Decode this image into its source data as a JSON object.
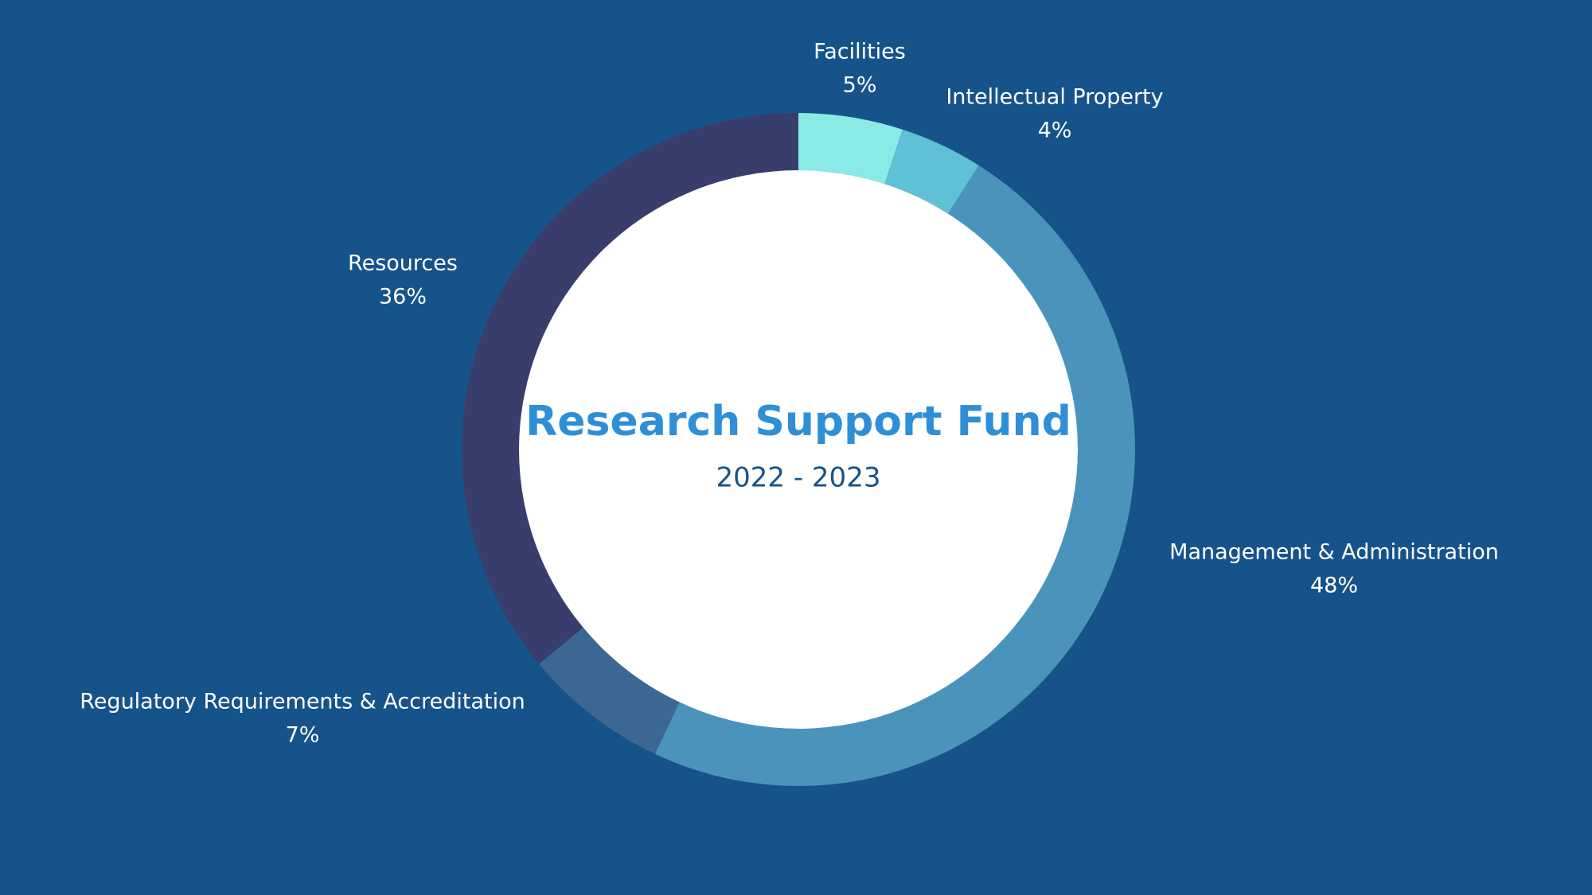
{
  "chart_data": {
    "type": "pie",
    "title": "Research Support Fund",
    "subtitle": "2022 - 2023",
    "categories": [
      "Facilities",
      "Intellectual Property",
      "Management & Administration",
      "Regulatory Requirements & Accreditation",
      "Resources"
    ],
    "values": [
      5,
      4,
      48,
      7,
      36
    ],
    "value_labels": [
      "5%",
      "4%",
      "48%",
      "7%",
      "36%"
    ],
    "colors": [
      "#8aeae6",
      "#5fc0d6",
      "#4a94bb",
      "#3c6793",
      "#383d6c"
    ]
  }
}
